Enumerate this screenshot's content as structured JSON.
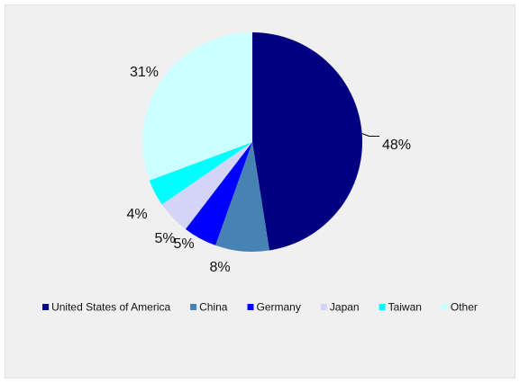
{
  "chart_data": {
    "type": "pie",
    "title": "",
    "legend_position": "bottom",
    "slices": [
      {
        "label": "United States of America",
        "value": 48,
        "display": "48%",
        "color": "#000080"
      },
      {
        "label": "China",
        "value": 8,
        "display": "8%",
        "color": "#4682b4"
      },
      {
        "label": "Germany",
        "value": 5,
        "display": "5%",
        "color": "#0000ff"
      },
      {
        "label": "Japan",
        "value": 5,
        "display": "5%",
        "color": "#d4d4f7"
      },
      {
        "label": "Taiwan",
        "value": 4,
        "display": "4%",
        "color": "#00ffff"
      },
      {
        "label": "Other",
        "value": 31,
        "display": "31%",
        "color": "#ccffff"
      }
    ]
  }
}
